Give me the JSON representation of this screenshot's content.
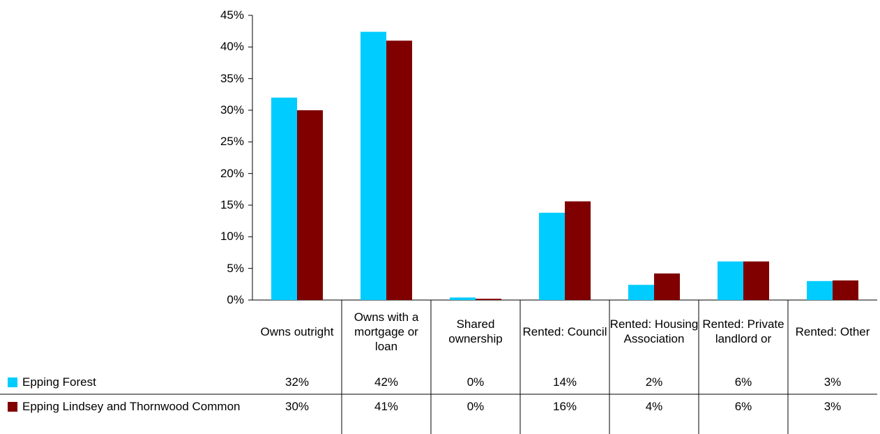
{
  "chart_data": {
    "type": "bar",
    "categories": [
      "Owns outright",
      "Owns with a mortgage or loan",
      "Shared ownership",
      "Rented: Council",
      "Rented: Housing Association",
      "Rented: Private landlord or",
      "Rented: Other"
    ],
    "series": [
      {
        "name": "Epping Forest",
        "color": "#00ccff",
        "values": [
          32.0,
          42.4,
          0.4,
          13.8,
          2.4,
          6.1,
          3.0
        ],
        "value_labels": [
          "32%",
          "42%",
          "0%",
          "14%",
          "2%",
          "6%",
          "3%"
        ]
      },
      {
        "name": "Epping Lindsey and Thornwood Common",
        "color": "#800000",
        "values": [
          30.0,
          41.0,
          0.2,
          15.6,
          4.2,
          6.1,
          3.1
        ],
        "value_labels": [
          "30%",
          "41%",
          "0%",
          "16%",
          "4%",
          "6%",
          "3%"
        ]
      }
    ],
    "ylim": [
      0,
      45
    ],
    "yticks": [
      {
        "value": 0,
        "label": "0%"
      },
      {
        "value": 5,
        "label": "5%"
      },
      {
        "value": 10,
        "label": "10%"
      },
      {
        "value": 15,
        "label": "15%"
      },
      {
        "value": 20,
        "label": "20%"
      },
      {
        "value": 25,
        "label": "25%"
      },
      {
        "value": 30,
        "label": "30%"
      },
      {
        "value": 35,
        "label": "35%"
      },
      {
        "value": 40,
        "label": "40%"
      },
      {
        "value": 45,
        "label": "45%"
      }
    ],
    "grid": false
  }
}
